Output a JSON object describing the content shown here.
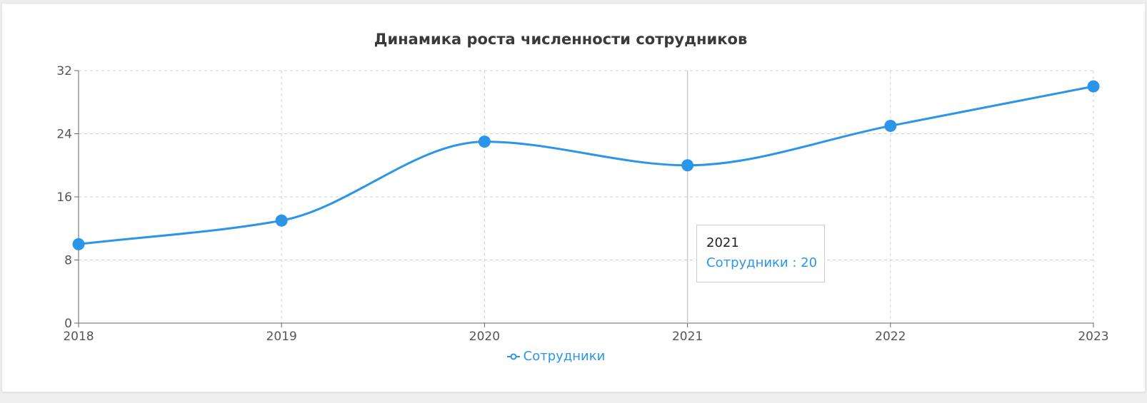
{
  "chart_data": {
    "type": "line",
    "title": "Динамика роста численности сотрудников",
    "xlabel": "",
    "ylabel": "",
    "categories": [
      "2018",
      "2019",
      "2020",
      "2021",
      "2022",
      "2023"
    ],
    "series": [
      {
        "name": "Сотрудники",
        "values": [
          10,
          13,
          23,
          20,
          25,
          30
        ],
        "color": "#2b95e9"
      }
    ],
    "ylim": [
      0,
      32
    ],
    "yticks": [
      "0",
      "8",
      "16",
      "24",
      "32"
    ],
    "grid": true,
    "smooth": true,
    "legend": "bottom-center"
  },
  "tooltip": {
    "category": "2021",
    "series_label": "Сотрудники",
    "separator": " : ",
    "value": "20"
  },
  "legend_icon": "line-circle-icon"
}
